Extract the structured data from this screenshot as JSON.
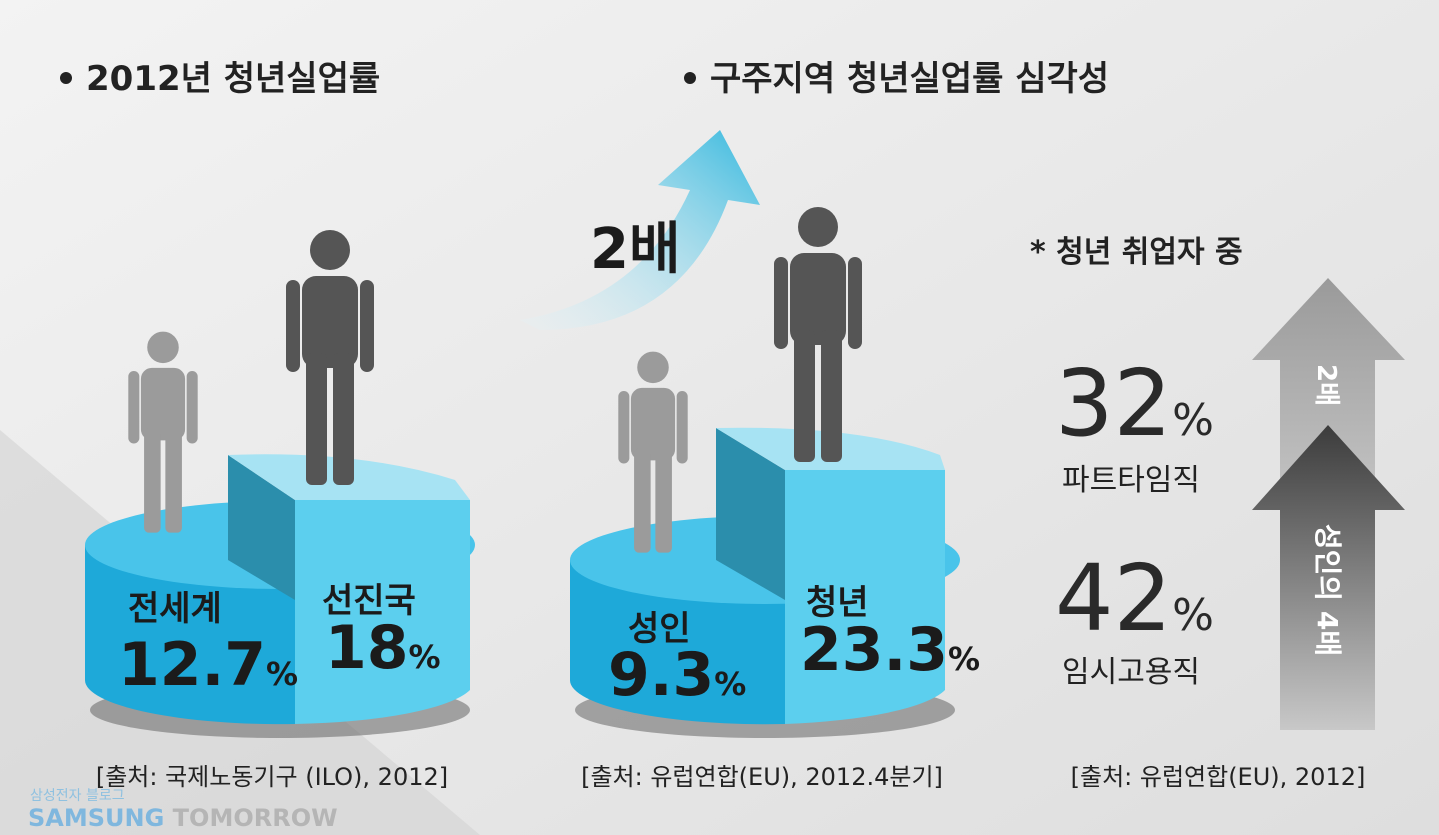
{
  "sections": [
    {
      "title": "2012년 청년실업률",
      "items": [
        {
          "label": "전세계",
          "value": "12.7",
          "unit": "%"
        },
        {
          "label": "선진국",
          "value": "18",
          "unit": "%"
        }
      ],
      "source": "[출처: 국제노동기구 (ILO), 2012]"
    },
    {
      "title": "구주지역 청년실업률 심각성",
      "arrow_label": "2배",
      "items": [
        {
          "label": "성인",
          "value": "9.3",
          "unit": "%"
        },
        {
          "label": "청년",
          "value": "23.3",
          "unit": "%"
        }
      ],
      "source": "[출처: 유럽연합(EU), 2012.4분기]"
    },
    {
      "note": "* 청년 취업자 중",
      "stats": [
        {
          "value": "32",
          "unit": "%",
          "label": "파트타임직"
        },
        {
          "value": "42",
          "unit": "%",
          "label": "임시고용직"
        }
      ],
      "arrows": [
        "2배",
        "성인의 4배"
      ],
      "source": "[출처: 유럽연합(EU), 2012]"
    }
  ],
  "watermark": {
    "blog": "삼성전자 블로그",
    "brand_1": "SAMSUNG",
    "brand_2": "TOMORROW"
  }
}
